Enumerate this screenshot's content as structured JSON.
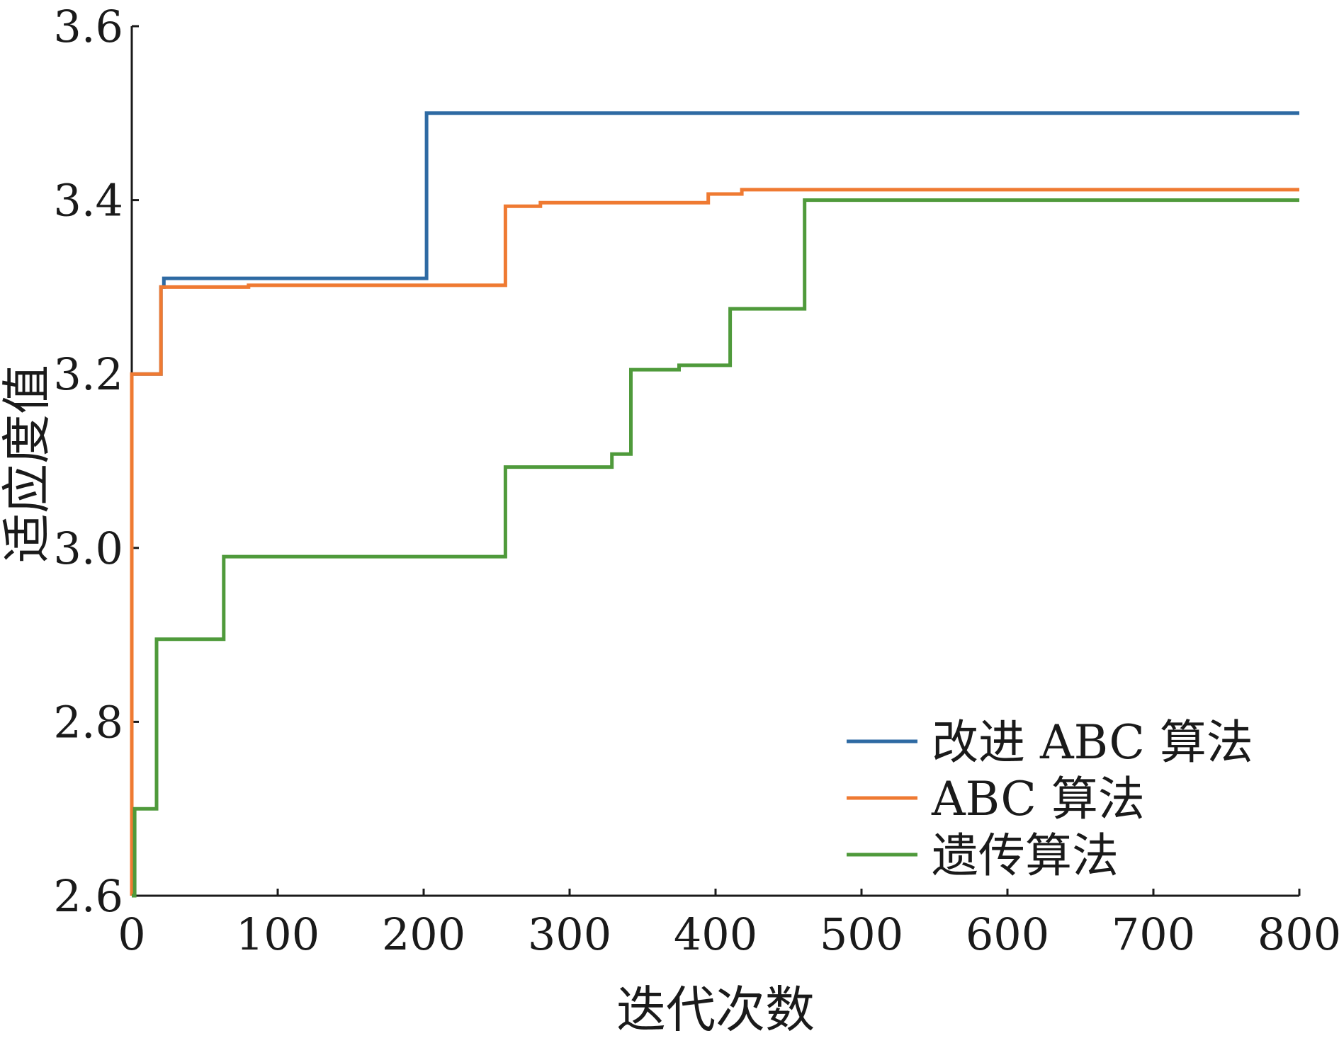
{
  "chart_data": {
    "type": "line",
    "xlabel": "迭代次数",
    "ylabel": "适应度值",
    "xlim": [
      0,
      800
    ],
    "ylim": [
      2.6,
      3.6
    ],
    "xticks": [
      "0",
      "100",
      "200",
      "300",
      "400",
      "500",
      "600",
      "700",
      "800"
    ],
    "yticks": [
      "2.6",
      "2.8",
      "3.0",
      "3.2",
      "3.4",
      "3.6"
    ],
    "xtick_values": [
      0,
      100,
      200,
      300,
      400,
      500,
      600,
      700,
      800
    ],
    "ytick_values": [
      2.6,
      2.8,
      3.0,
      3.2,
      3.4,
      3.6
    ],
    "grid": false,
    "legend_position": "bottom-right",
    "series": [
      {
        "name": "改进 ABC 算法",
        "color": "#2e6aa3",
        "x": [
          0,
          20,
          20,
          22,
          22,
          202,
          202,
          800
        ],
        "y": [
          3.2,
          3.2,
          3.3,
          3.3,
          3.31,
          3.31,
          3.5,
          3.5
        ]
      },
      {
        "name": "ABC 算法",
        "color": "#ef7a32",
        "x": [
          0,
          0,
          20,
          20,
          80,
          80,
          256,
          256,
          280,
          280,
          395,
          395,
          418,
          418,
          800
        ],
        "y": [
          2.6,
          3.2,
          3.2,
          3.3,
          3.3,
          3.302,
          3.302,
          3.393,
          3.393,
          3.397,
          3.397,
          3.407,
          3.407,
          3.412,
          3.412
        ]
      },
      {
        "name": "遗传算法",
        "color": "#4f9a3b",
        "x": [
          0,
          2,
          2,
          17,
          17,
          63,
          63,
          256,
          256,
          329,
          329,
          342,
          342,
          375,
          375,
          410,
          410,
          461,
          461,
          800
        ],
        "y": [
          2.6,
          2.6,
          2.7,
          2.7,
          2.895,
          2.895,
          2.99,
          2.99,
          3.093,
          3.093,
          3.108,
          3.108,
          3.205,
          3.205,
          3.21,
          3.21,
          3.275,
          3.275,
          3.4,
          3.4
        ]
      }
    ]
  }
}
